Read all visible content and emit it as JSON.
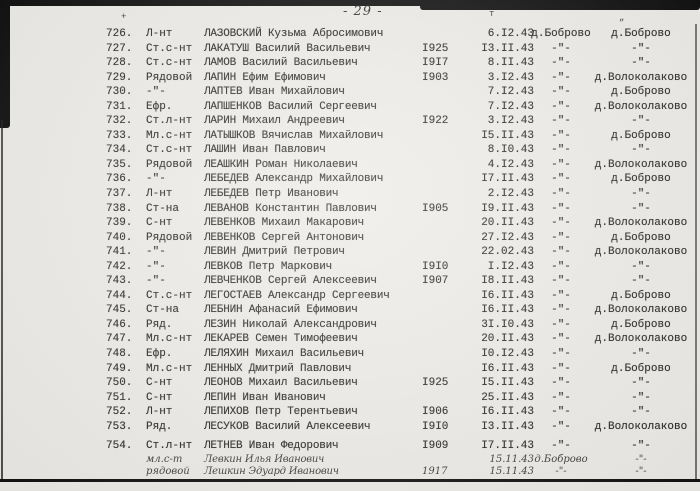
{
  "page": {
    "number_label": "- 29 -",
    "stray_marks": {
      "m1": "+",
      "m2": "т",
      "m3": "„"
    }
  },
  "table": {
    "rows": [
      {
        "num": "726.",
        "rank": "Л-нт",
        "name": "ЛАЗОВСКИЙ Кузьма Абросимович",
        "year": "",
        "date": "6.I2.43",
        "place1": "д.Боброво",
        "place2": "д.Боброво"
      },
      {
        "num": "727.",
        "rank": "Ст.с-нт",
        "name": "ЛАКАТУШ Василий Васильевич",
        "year": "I925",
        "date": "I3.II.43",
        "place1": "-\"-",
        "place2": "-\"-"
      },
      {
        "num": "728.",
        "rank": "Ст.с-нт",
        "name": "ЛАМОВ Василий Васильевич",
        "year": "I9I7",
        "date": "8.II.43",
        "place1": "-\"-",
        "place2": "-\"-"
      },
      {
        "num": "729.",
        "rank": "Рядовой",
        "name": "ЛАПИН Ефим Ефимович",
        "year": "I903",
        "date": "3.I2.43",
        "place1": "-\"-",
        "place2": "д.Волоколаково"
      },
      {
        "num": "730.",
        "rank": "-\"-",
        "name": "ЛАПТЕВ Иван Михайлович",
        "year": "",
        "date": "7.I2.43",
        "place1": "-\"-",
        "place2": "д.Боброво"
      },
      {
        "num": "731.",
        "rank": "Ефр.",
        "name": "ЛАПШЕНКОВ Василий Сергеевич",
        "year": "",
        "date": "7.I2.43",
        "place1": "-\"-",
        "place2": "д.Волоколаково"
      },
      {
        "num": "732.",
        "rank": "Ст.л-нт",
        "name": "ЛАРИН Михаил Андреевич",
        "year": "I922",
        "date": "3.I2.43",
        "place1": "-\"-",
        "place2": "-\"-"
      },
      {
        "num": "733.",
        "rank": "Мл.с-нт",
        "name": "ЛАТЫШКОВ Вячислав Михайлович",
        "year": "",
        "date": "I5.II.43",
        "place1": "-\"-",
        "place2": "д.Боброво"
      },
      {
        "num": "734.",
        "rank": "Ст.с-нт",
        "name": "ЛАШИН Иван Павлович",
        "year": "",
        "date": "8.I0.43",
        "place1": "-\"-",
        "place2": "-\"-"
      },
      {
        "num": "735.",
        "rank": "Рядовой",
        "name": "ЛЕАШКИН Роман Николаевич",
        "year": "",
        "date": "4.I2.43",
        "place1": "-\"-",
        "place2": "д.Волоколаково"
      },
      {
        "num": "736.",
        "rank": "-\"-",
        "name": "ЛЕБЕДЕВ Александр Михайлович",
        "year": "",
        "date": "I7.II.43",
        "place1": "-\"-",
        "place2": "д.Боброво"
      },
      {
        "num": "737.",
        "rank": "Л-нт",
        "name": "ЛЕБЕДЕВ Петр Иванович",
        "year": "",
        "date": "2.I2.43",
        "place1": "-\"-",
        "place2": "-\"-"
      },
      {
        "num": "738.",
        "rank": "Ст-на",
        "name": "ЛЕВАНОВ Константин Павлович",
        "year": "I905",
        "date": "I9.II.43",
        "place1": "-\"-",
        "place2": "-\"-"
      },
      {
        "num": "739.",
        "rank": "С-нт",
        "name": "ЛЕВЕНКОВ Михаил Макарович",
        "year": "",
        "date": "20.II.43",
        "place1": "-\"-",
        "place2": "д.Волоколаково"
      },
      {
        "num": "740.",
        "rank": "Рядовой",
        "name": "ЛЕВЕНКОВ Сергей Антонович",
        "year": "",
        "date": "27.I2.43",
        "place1": "-\"-",
        "place2": "д.Боброво"
      },
      {
        "num": "741.",
        "rank": "-\"-",
        "name": "ЛЕВИН Дмитрий Петрович",
        "year": "",
        "date": "22.02.43",
        "place1": "-\"-",
        "place2": "д.Волоколаково"
      },
      {
        "num": "742.",
        "rank": "-\"-",
        "name": "ЛЕВКОВ Петр Маркович",
        "year": "I9I0",
        "date": "I.I2.43",
        "place1": "-\"-",
        "place2": "-\"-"
      },
      {
        "num": "743.",
        "rank": "-\"-",
        "name": "ЛЕВЧЕНКОВ Сергей Алексеевич",
        "year": "I907",
        "date": "I8.II.43",
        "place1": "-\"-",
        "place2": "-\"-"
      },
      {
        "num": "744.",
        "rank": "Ст.с-нт",
        "name": "ЛЕГОСТАЕВ Александр Сергеевич",
        "year": "",
        "date": "I6.II.43",
        "place1": "-\"-",
        "place2": "д.Боброво"
      },
      {
        "num": "745.",
        "rank": "Ст-на",
        "name": "ЛЕБНИН Афанасий Ефимович",
        "year": "",
        "date": "I6.II.43",
        "place1": "-\"-",
        "place2": "д.Волоколаково"
      },
      {
        "num": "746.",
        "rank": "Ряд.",
        "name": "ЛЕЗИН Николай Александрович",
        "year": "",
        "date": "3I.I0.43",
        "place1": "-\"-",
        "place2": "д.Боброво"
      },
      {
        "num": "747.",
        "rank": "Мл.с-нт",
        "name": "ЛЕКАРЕВ Семен Тимофеевич",
        "year": "",
        "date": "20.II.43",
        "place1": "-\"-",
        "place2": "д.Волоколаково"
      },
      {
        "num": "748.",
        "rank": "Ефр.",
        "name": "ЛЕЛЯХИН Михаил Васильевич",
        "year": "",
        "date": "I0.I2.43",
        "place1": "-\"-",
        "place2": "-\"-"
      },
      {
        "num": "749.",
        "rank": "Мл.с-нт",
        "name": "ЛЕННЫХ Дмитрий Павлович",
        "year": "",
        "date": "I6.II.43",
        "place1": "-\"-",
        "place2": "д.Боброво"
      },
      {
        "num": "750.",
        "rank": "С-нт",
        "name": "ЛЕОНОВ Михаил Васильевич",
        "year": "I925",
        "date": "I5.II.43",
        "place1": "-\"-",
        "place2": "-\"-"
      },
      {
        "num": "751.",
        "rank": "С-нт",
        "name": "ЛЕПИН Иван Иванович",
        "year": "",
        "date": "25.II.43",
        "place1": "-\"-",
        "place2": "-\"-"
      },
      {
        "num": "752.",
        "rank": "Л-нт",
        "name": "ЛЕПИХОВ Петр Терентьевич",
        "year": "I906",
        "date": "I6.II.43",
        "place1": "-\"-",
        "place2": "-\"-"
      },
      {
        "num": "753.",
        "rank": "Ряд.",
        "name": "ЛЕСУКОВ Василий Алексеевич",
        "year": "I9I0",
        "date": "I3.II.43",
        "place1": "-\"-",
        "place2": "д.Волоколаково"
      },
      {
        "num": "754.",
        "rank": "Ст.л-нт",
        "name": "ЛЕТНЕВ Иван Федорович",
        "year": "I909",
        "date": "I7.II.43",
        "place1": "-\"-",
        "place2": "-\"-"
      }
    ],
    "handwritten_rows": [
      {
        "num": "",
        "rank": "мл.с-т",
        "name": "Левкин Илья Иванович",
        "year": "",
        "date": "15.11.43",
        "place1": "д.Боброво",
        "place2": "-\"-"
      },
      {
        "num": "",
        "rank": "рядовой",
        "name": "Лешкин Эдуард Иванович",
        "year": "1917",
        "date": "15.11.43",
        "place1": "-\"-",
        "place2": "-\"-"
      }
    ]
  }
}
